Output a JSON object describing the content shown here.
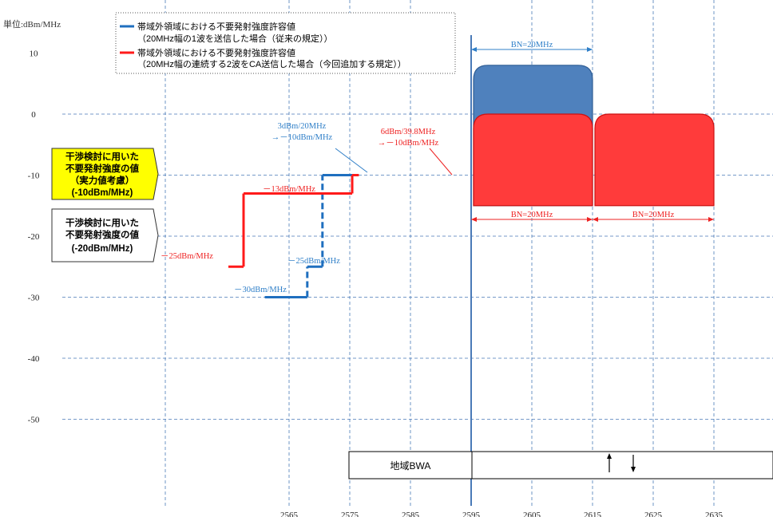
{
  "chart_data": {
    "type": "step-line",
    "unit_label": "単位:dBm/MHz",
    "y_ticks": [
      10,
      0,
      -10,
      -20,
      -30,
      -40,
      -50
    ],
    "x_ticks": [
      2565,
      2575,
      2585,
      2595,
      2605,
      2615,
      2625,
      2635
    ],
    "legend": [
      {
        "color": "#1f6fbf",
        "line1": "帯域外領域における不要発射強度許容値",
        "line2": "（20MHz幅の1波を送信した場合（従来の規定））"
      },
      {
        "color": "#ff1a1a",
        "line1": "帯域外領域における不要発射強度許容値",
        "line2": "（20MHz幅の連続する2波をCA送信した場合（今回追加する規定））"
      }
    ],
    "series": [
      {
        "name": "帯域外領域における不要発射強度許容値（20MHz幅の1波を送信した場合（従来の規定））",
        "color": "#1f6fbf",
        "segments": [
          {
            "x0": 2561,
            "x1": 2568,
            "y": -30
          },
          {
            "x0": 2568,
            "x1": 2570.5,
            "y": -25
          },
          {
            "x0": 2570.5,
            "x1": 2575.4,
            "y": -10
          }
        ],
        "verticals": [
          {
            "x": 2568,
            "y0": -30,
            "y1": -25
          },
          {
            "x": 2570.5,
            "y0": -25,
            "y1": -10
          }
        ]
      },
      {
        "name": "帯域外領域における不要発射強度許容値（20MHz幅の連続する2波をCA送信した場合（今回追加する規定））",
        "color": "#ff1a1a",
        "segments": [
          {
            "x0": 2555,
            "x1": 2557.5,
            "y": -25
          },
          {
            "x0": 2557.5,
            "x1": 2575.4,
            "y": -13
          },
          {
            "x0": 2575.4,
            "x1": 2576.5,
            "y": -10
          }
        ],
        "verticals": [
          {
            "x": 2557.5,
            "y0": -25,
            "y1": -13
          },
          {
            "x": 2575.4,
            "y0": -13,
            "y1": -10
          }
        ]
      }
    ],
    "carriers": [
      {
        "name": "blue",
        "color": "#4f81bd",
        "x0": 2595,
        "x1": 2615,
        "ytop": 8,
        "ybottom": -15
      },
      {
        "name": "red1",
        "color": "#ff3b3b",
        "x0": 2595,
        "x1": 2615,
        "ytop": 0,
        "ybottom": -15
      },
      {
        "name": "red2",
        "color": "#ff3b3b",
        "x0": 2615,
        "x1": 2635,
        "ytop": 0,
        "ybottom": -15
      }
    ],
    "annotations": {
      "blue_30": "－30dBm/MHz",
      "blue_25": "－25dBm/MHz",
      "blue_10_line1": "3dBm/20MHz",
      "blue_10_line2": "→－10dBm/MHz",
      "red_25": "－25dBm/MHz",
      "red_13": "－13dBm/MHz",
      "red_10_line1": "6dBm/39.8MHz",
      "red_10_line2": "→－10dBm/MHz",
      "bn_top": "BN=20MHz",
      "bn_left": "BN=20MHz",
      "bn_right": "BN=20MHz"
    },
    "callouts": [
      {
        "lines": [
          "干渉検討に用いた",
          "不要発射強度の値",
          "（実力値考慮）",
          "(-10dBm/MHz)"
        ],
        "fill": "#ffff00"
      },
      {
        "lines": [
          "干渉検討に用いた",
          "不要発射強度の値",
          "(-20dBm/MHz)"
        ],
        "fill": "#ffffff"
      }
    ],
    "band_label": "地域BWA"
  }
}
